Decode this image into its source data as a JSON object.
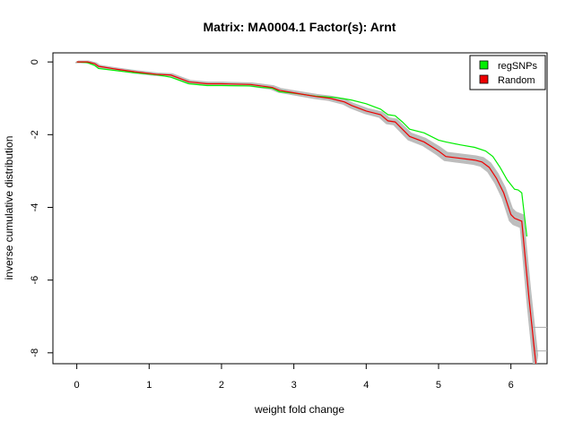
{
  "chart_data": {
    "type": "line",
    "title": "Matrix: MA0004.1 Factor(s): Arnt",
    "xlabel": "weight fold change",
    "ylabel": "inverse cumulative distribution",
    "xlim": [
      -0.33,
      6.5
    ],
    "ylim": [
      -8.3,
      0.25
    ],
    "xticks": [
      0,
      1,
      2,
      3,
      4,
      5,
      6
    ],
    "yticks": [
      0,
      -2,
      -4,
      -6,
      -8
    ],
    "grid": false,
    "legend_position": "top-right",
    "series": [
      {
        "name": "regSNPs",
        "color": "#00ee00",
        "x": [
          0,
          0.15,
          0.25,
          0.3,
          0.55,
          0.8,
          1.1,
          1.3,
          1.55,
          1.8,
          2.0,
          2.4,
          2.55,
          2.7,
          2.8,
          3.0,
          3.3,
          3.6,
          3.8,
          4.0,
          4.2,
          4.3,
          4.4,
          4.5,
          4.6,
          4.8,
          5.0,
          5.1,
          5.3,
          5.5,
          5.65,
          5.75,
          5.85,
          5.95,
          6.05,
          6.1,
          6.15,
          6.22
        ],
        "y": [
          0,
          -0.02,
          -0.1,
          -0.18,
          -0.24,
          -0.3,
          -0.35,
          -0.42,
          -0.6,
          -0.65,
          -0.65,
          -0.66,
          -0.7,
          -0.72,
          -0.82,
          -0.86,
          -0.94,
          -0.98,
          -1.05,
          -1.15,
          -1.3,
          -1.45,
          -1.48,
          -1.65,
          -1.85,
          -1.95,
          -2.15,
          -2.2,
          -2.28,
          -2.35,
          -2.45,
          -2.6,
          -2.9,
          -3.25,
          -3.5,
          -3.52,
          -3.6,
          -4.8
        ]
      },
      {
        "name": "Random",
        "color": "#ee0000",
        "x": [
          0,
          0.15,
          0.25,
          0.3,
          0.55,
          0.8,
          1.1,
          1.3,
          1.55,
          1.8,
          2.0,
          2.4,
          2.55,
          2.7,
          2.8,
          3.0,
          3.3,
          3.5,
          3.6,
          3.7,
          3.8,
          4.0,
          4.2,
          4.3,
          4.4,
          4.5,
          4.6,
          4.8,
          5.0,
          5.1,
          5.3,
          5.5,
          5.6,
          5.7,
          5.8,
          5.9,
          6.0,
          6.05,
          6.15,
          6.25,
          6.35
        ],
        "y": [
          0,
          0,
          -0.05,
          -0.12,
          -0.2,
          -0.27,
          -0.34,
          -0.36,
          -0.55,
          -0.6,
          -0.6,
          -0.62,
          -0.66,
          -0.7,
          -0.78,
          -0.85,
          -0.95,
          -1.0,
          -1.05,
          -1.1,
          -1.2,
          -1.35,
          -1.45,
          -1.62,
          -1.65,
          -1.85,
          -2.05,
          -2.2,
          -2.45,
          -2.6,
          -2.65,
          -2.7,
          -2.75,
          -2.9,
          -3.2,
          -3.6,
          -4.2,
          -4.3,
          -4.38,
          -6.5,
          -8.4
        ]
      }
    ]
  }
}
